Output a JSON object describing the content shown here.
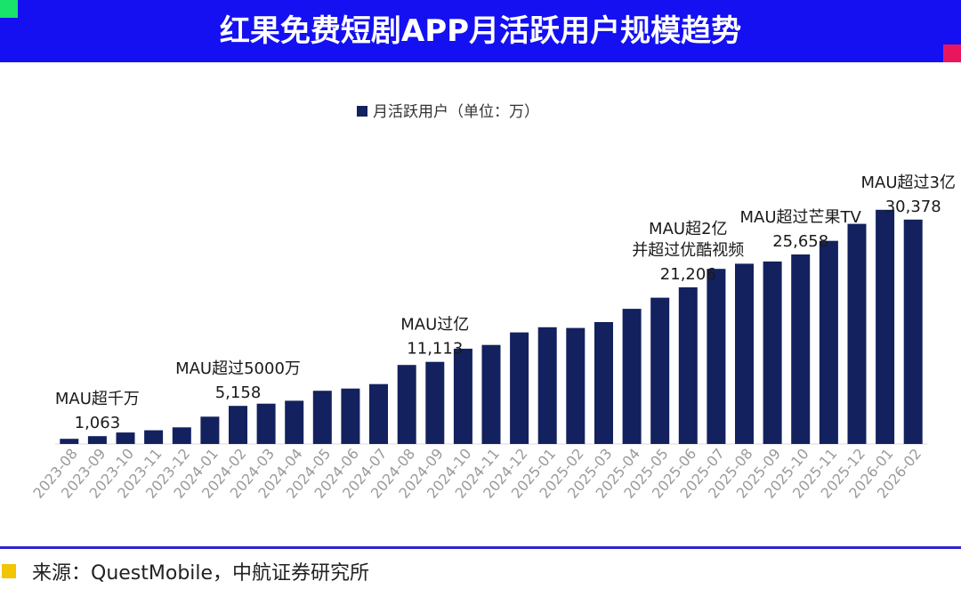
{
  "header": {
    "title": "红果免费短剧APP月活跃用户规模趋势"
  },
  "colors": {
    "header_bg": "#1410f2",
    "bar": "#13215e",
    "accent_green": "#19e36b",
    "accent_pink": "#e8175d",
    "footer_square": "#f2c500"
  },
  "chart_data": {
    "type": "bar",
    "categories": [
      "2023-08",
      "2023-09",
      "2023-10",
      "2023-11",
      "2023-12",
      "2024-01",
      "2024-02",
      "2024-03",
      "2024-04",
      "2024-05",
      "2024-06",
      "2024-07",
      "2024-08",
      "2024-09",
      "2024-10",
      "2024-11",
      "2024-12",
      "2025-01",
      "2025-02",
      "2025-03",
      "2025-04",
      "2025-05",
      "2025-06",
      "2025-07",
      "2025-08",
      "2025-09",
      "2025-10",
      "2025-11",
      "2025-12",
      "2026-01",
      "2026-02"
    ],
    "series": [
      {
        "name": "月活跃用户（单位：万）",
        "values": [
          700,
          1063,
          1550,
          1850,
          2250,
          3700,
          5158,
          5450,
          5850,
          7200,
          7500,
          8100,
          10700,
          11113,
          12900,
          13400,
          15100,
          15800,
          15700,
          16500,
          18300,
          19800,
          21206,
          23700,
          24400,
          24700,
          25658,
          27500,
          29800,
          31700,
          30378
        ]
      }
    ],
    "data_labels": [
      {
        "index": 1,
        "text": "1,063"
      },
      {
        "index": 6,
        "text": "5,158"
      },
      {
        "index": 13,
        "text": "11,113"
      },
      {
        "index": 22,
        "text": "21,206"
      },
      {
        "index": 26,
        "text": "25,658"
      },
      {
        "index": 30,
        "text": "30,378"
      }
    ],
    "annotations": [
      {
        "index": 1,
        "lines": [
          "MAU超千万"
        ]
      },
      {
        "index": 6,
        "lines": [
          "MAU超过5000万"
        ]
      },
      {
        "index": 13,
        "lines": [
          "MAU过亿"
        ]
      },
      {
        "index": 22,
        "lines": [
          "MAU超2亿",
          "并超过优酷视频"
        ]
      },
      {
        "index": 26,
        "lines": [
          "MAU超过芒果TV"
        ]
      },
      {
        "index": 30,
        "lines": [
          "MAU超过3亿"
        ]
      }
    ],
    "legend_position": "top-center",
    "ylim": [
      0,
      33000
    ],
    "grid": false,
    "y_axis_visible": false
  },
  "footer": {
    "source": "来源：QuestMobile，中航证券研究所"
  }
}
